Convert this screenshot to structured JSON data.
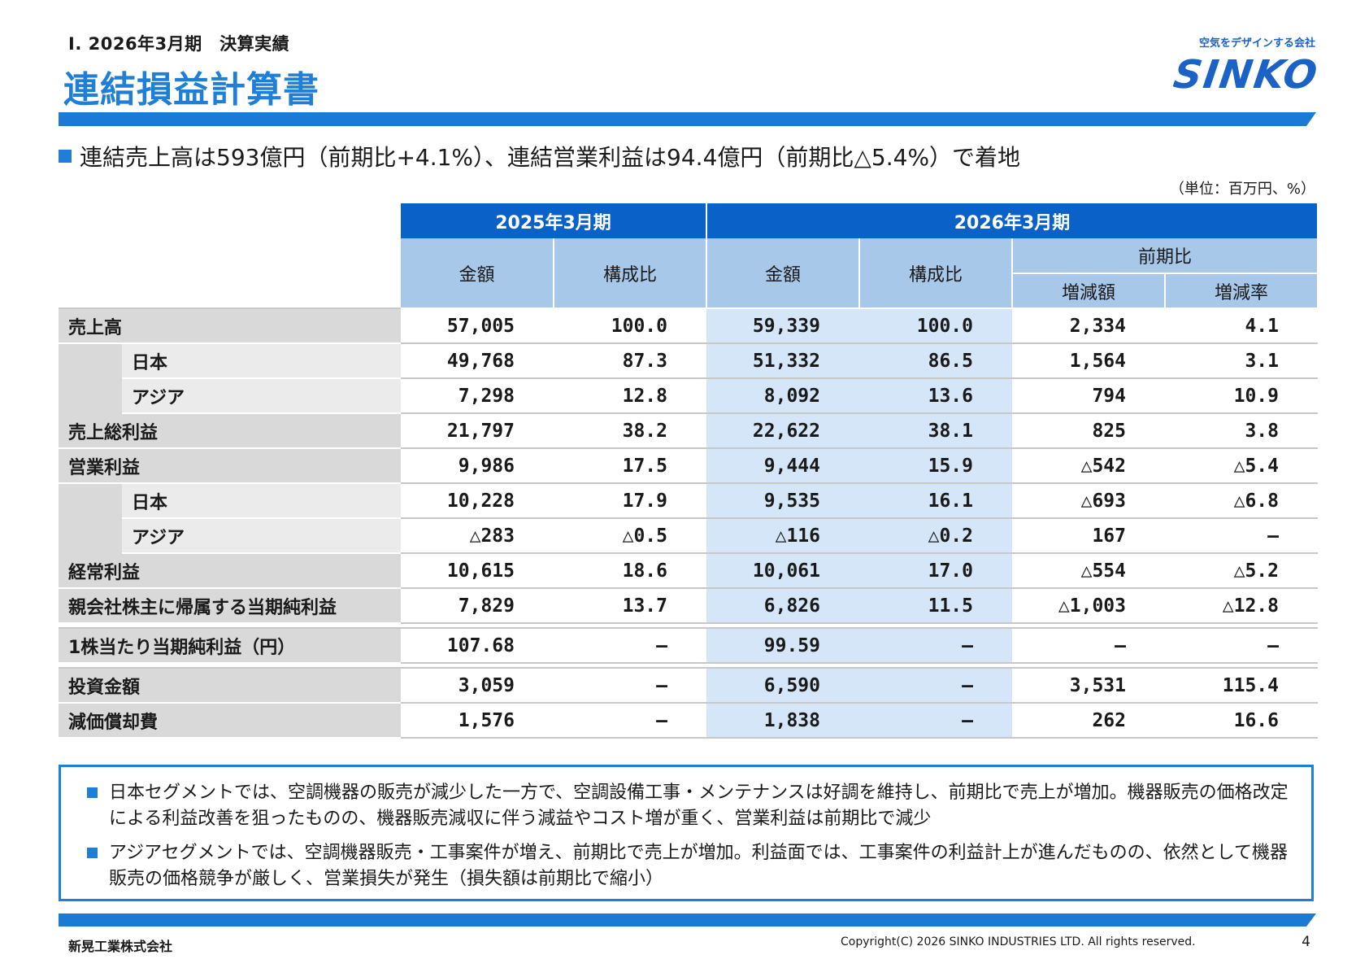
{
  "header": {
    "section": "Ⅰ. 2026年3月期　決算実績",
    "title": "連結損益計算書",
    "tagline": "空気をデザインする会社",
    "logo": "SINKO"
  },
  "headline": "連結売上高は593億円（前期比+4.1%）、連結営業利益は94.4億円（前期比△5.4%）で着地",
  "unit_note": "（単位：百万円、%）",
  "table": {
    "period_prev": "2025年3月期",
    "period_curr": "2026年3月期",
    "col_amount": "金額",
    "col_ratio": "構成比",
    "col_yoy": "前期比",
    "col_change": "増減額",
    "col_change_rate": "増減率",
    "rows": [
      {
        "label": "売上高",
        "sub": false,
        "v": [
          "57,005",
          "100.0",
          "59,339",
          "100.0",
          "2,334",
          "4.1"
        ]
      },
      {
        "label": "日本",
        "sub": true,
        "v": [
          "49,768",
          "87.3",
          "51,332",
          "86.5",
          "1,564",
          "3.1"
        ]
      },
      {
        "label": "アジア",
        "sub": true,
        "v": [
          "7,298",
          "12.8",
          "8,092",
          "13.6",
          "794",
          "10.9"
        ]
      },
      {
        "label": "売上総利益",
        "sub": false,
        "v": [
          "21,797",
          "38.2",
          "22,622",
          "38.1",
          "825",
          "3.8"
        ]
      },
      {
        "label": "営業利益",
        "sub": false,
        "v": [
          "9,986",
          "17.5",
          "9,444",
          "15.9",
          "△542",
          "△5.4"
        ]
      },
      {
        "label": "日本",
        "sub": true,
        "v": [
          "10,228",
          "17.9",
          "9,535",
          "16.1",
          "△693",
          "△6.8"
        ]
      },
      {
        "label": "アジア",
        "sub": true,
        "v": [
          "△283",
          "△0.5",
          "△116",
          "△0.2",
          "167",
          "―"
        ]
      },
      {
        "label": "経常利益",
        "sub": false,
        "v": [
          "10,615",
          "18.6",
          "10,061",
          "17.0",
          "△554",
          "△5.2"
        ]
      },
      {
        "label": "親会社株主に帰属する当期純利益",
        "sub": false,
        "v": [
          "7,829",
          "13.7",
          "6,826",
          "11.5",
          "△1,003",
          "△12.8"
        ]
      },
      {
        "label": "1株当たり当期純利益（円）",
        "sub": false,
        "v": [
          "107.68",
          "―",
          "99.59",
          "―",
          "―",
          "―"
        ]
      },
      {
        "label": "投資金額",
        "sub": false,
        "v": [
          "3,059",
          "―",
          "6,590",
          "―",
          "3,531",
          "115.4"
        ]
      },
      {
        "label": "減価償却費",
        "sub": false,
        "v": [
          "1,576",
          "―",
          "1,838",
          "―",
          "262",
          "16.6"
        ]
      }
    ]
  },
  "notes": [
    "日本セグメントでは、空調機器の販売が減少した一方で、空調設備工事・メンテナンスは好調を維持し、前期比で売上が増加。機器販売の価格改定による利益改善を狙ったものの、機器販売減収に伴う減益やコスト増が重く、営業利益は前期比で減少",
    "アジアセグメントでは、空調機器販売・工事案件が増え、前期比で売上が増加。利益面では、工事案件の利益計上が進んだものの、依然として機器販売の価格競争が厳しく、営業損失が発生（損失額は前期比で縮小）"
  ],
  "footer": {
    "company": "新晃工業株式会社",
    "copyright": "Copyright(C) 2026 SINKO INDUSTRIES LTD. All rights reserved.",
    "page": "4"
  },
  "colors": {
    "accent": "#1f7fd6",
    "header_dark": "#0a62c9",
    "header_light": "#a8c8ea",
    "highlight": "#d4e6f8",
    "label_bg": "#d9d9d9"
  }
}
